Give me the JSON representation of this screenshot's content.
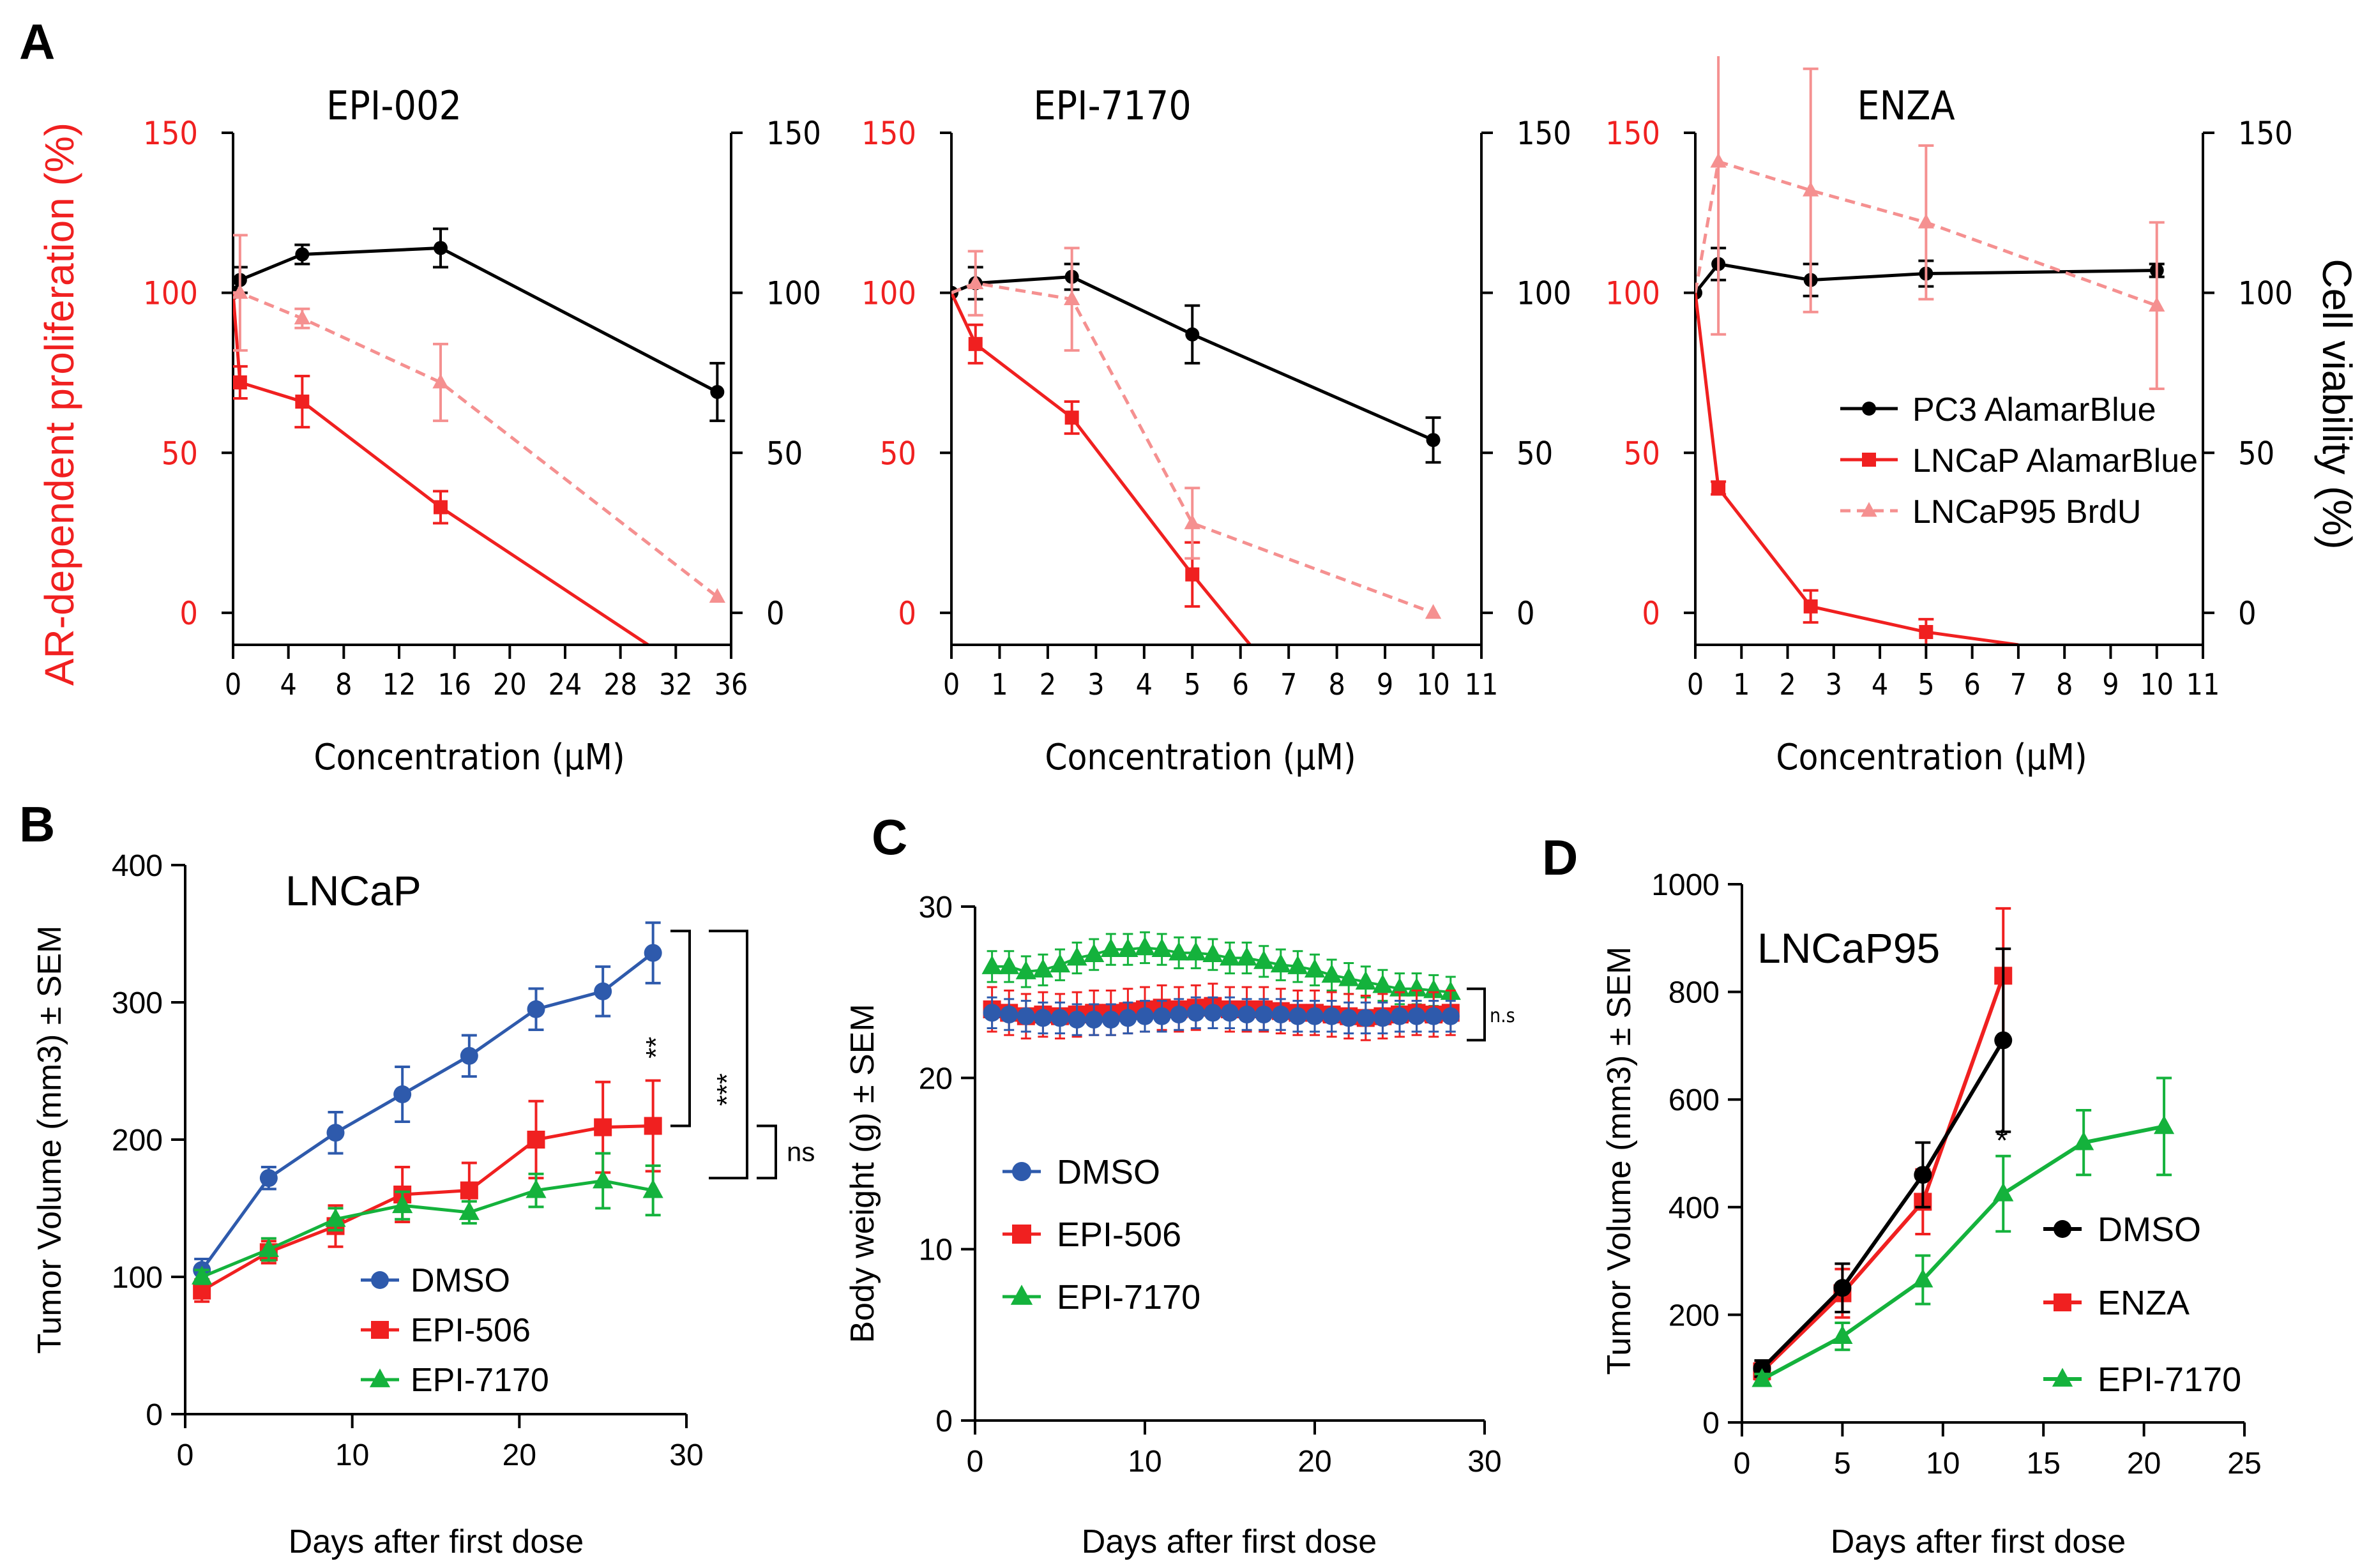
{
  "figure_labels": {
    "A": "A",
    "B": "B",
    "C": "C",
    "D": "D"
  },
  "colors": {
    "black": "#000000",
    "red": "#f02020",
    "pink": "#f59090",
    "blue": "#2e5aac",
    "green": "#14b23c"
  },
  "chart_data": [
    {
      "id": "epi002",
      "type": "line",
      "title": "EPI-002",
      "xlabel": "Concentration (μM)",
      "ylabel_left": "AR-dependent proliferation (%)",
      "ylabel_right": "",
      "xlim": [
        0,
        36
      ],
      "ylim": [
        -10,
        150
      ],
      "xticks": [
        0,
        4,
        8,
        12,
        16,
        20,
        24,
        28,
        32,
        36
      ],
      "yticks_left": [
        0,
        50,
        100,
        150
      ],
      "yticks_right": [
        0,
        50,
        100,
        150
      ],
      "series": [
        {
          "name": "PC3 AlamarBlue",
          "color": "black",
          "dash": false,
          "marker": "circle",
          "x": [
            0,
            0.5,
            5,
            15,
            35
          ],
          "y": [
            100,
            104,
            112,
            114,
            69
          ],
          "err": [
            0,
            4,
            3,
            6,
            9
          ]
        },
        {
          "name": "LNCaP AlamarBlue",
          "color": "red",
          "dash": false,
          "marker": "square",
          "x": [
            0.5,
            5,
            15
          ],
          "y": [
            72,
            66,
            33
          ],
          "err": [
            5,
            8,
            5
          ],
          "line_x": [
            0,
            0.5,
            5,
            15,
            30
          ],
          "line_y": [
            100,
            72,
            66,
            33,
            -10
          ]
        },
        {
          "name": "LNCaP95 BrdU",
          "color": "pink",
          "dash": true,
          "marker": "triangle",
          "x": [
            0.5,
            5,
            15,
            35
          ],
          "y": [
            100,
            92,
            72,
            5
          ],
          "err": [
            18,
            3,
            12,
            0
          ],
          "line_x": [
            0,
            0.5,
            5,
            15,
            35
          ],
          "line_y": [
            100,
            100,
            92,
            72,
            5
          ]
        }
      ]
    },
    {
      "id": "epi7170",
      "type": "line",
      "title": "EPI-7170",
      "xlabel": "Concentration (μM)",
      "xlim": [
        0,
        11
      ],
      "ylim": [
        -10,
        150
      ],
      "xticks": [
        0,
        1,
        2,
        3,
        4,
        5,
        6,
        7,
        8,
        9,
        10,
        11
      ],
      "yticks_left": [
        0,
        50,
        100,
        150
      ],
      "yticks_right": [
        0,
        50,
        100,
        150
      ],
      "series": [
        {
          "name": "PC3 AlamarBlue",
          "color": "black",
          "dash": false,
          "marker": "circle",
          "x": [
            0,
            0.5,
            2.5,
            5,
            10
          ],
          "y": [
            100,
            103,
            105,
            87,
            54
          ],
          "err": [
            0,
            5,
            4,
            9,
            7
          ]
        },
        {
          "name": "LNCaP AlamarBlue",
          "color": "red",
          "dash": false,
          "marker": "square",
          "x": [
            0.5,
            2.5,
            5
          ],
          "y": [
            84,
            61,
            12
          ],
          "err": [
            6,
            5,
            10
          ],
          "line_x": [
            0,
            0.5,
            2.5,
            5,
            6.2
          ],
          "line_y": [
            100,
            84,
            61,
            12,
            -10
          ]
        },
        {
          "name": "LNCaP95 BrdU",
          "color": "pink",
          "dash": true,
          "marker": "triangle",
          "x": [
            0.5,
            2.5,
            5,
            10
          ],
          "y": [
            103,
            98,
            28,
            0
          ],
          "err": [
            10,
            16,
            11,
            0
          ],
          "line_x": [
            0,
            0.5,
            2.5,
            5,
            10
          ],
          "line_y": [
            100,
            103,
            98,
            28,
            0
          ]
        }
      ]
    },
    {
      "id": "enza",
      "type": "line",
      "title": "ENZA",
      "xlabel": "Concentration (μM)",
      "ylabel_right": "Cell viability (%)",
      "xlim": [
        0,
        11
      ],
      "ylim": [
        -10,
        150
      ],
      "xticks": [
        0,
        1,
        2,
        3,
        4,
        5,
        6,
        7,
        8,
        9,
        10,
        11
      ],
      "yticks_left": [
        0,
        50,
        100,
        150
      ],
      "yticks_right": [
        0,
        50,
        100,
        150
      ],
      "legend": [
        {
          "label": "PC3 AlamarBlue",
          "color": "black",
          "marker": "circle",
          "dash": false
        },
        {
          "label": "LNCaP AlamarBlue",
          "color": "red",
          "marker": "square",
          "dash": false
        },
        {
          "label": "LNCaP95 BrdU",
          "color": "pink",
          "marker": "triangle",
          "dash": true
        }
      ],
      "series": [
        {
          "name": "PC3 AlamarBlue",
          "color": "black",
          "dash": false,
          "marker": "circle",
          "x": [
            0,
            0.5,
            2.5,
            5,
            10
          ],
          "y": [
            100,
            109,
            104,
            106,
            107
          ],
          "err": [
            0,
            5,
            5,
            4,
            2
          ]
        },
        {
          "name": "LNCaP AlamarBlue",
          "color": "red",
          "dash": false,
          "marker": "square",
          "x": [
            0.5,
            2.5,
            5
          ],
          "y": [
            39,
            2,
            -6
          ],
          "err": [
            2,
            5,
            4
          ],
          "line_x": [
            0,
            0.5,
            2.5,
            5,
            7
          ],
          "line_y": [
            100,
            39,
            2,
            -6,
            -10
          ]
        },
        {
          "name": "LNCaP95 BrdU",
          "color": "pink",
          "dash": true,
          "marker": "triangle",
          "x": [
            0.5,
            2.5,
            5,
            10
          ],
          "y": [
            141,
            132,
            122,
            96
          ],
          "err": [
            54,
            38,
            24,
            26
          ],
          "line_x": [
            0,
            0.5,
            2.5,
            5,
            10
          ],
          "line_y": [
            100,
            141,
            132,
            122,
            96
          ]
        }
      ]
    },
    {
      "id": "B",
      "type": "line",
      "title": "LNCaP",
      "xlabel": "Days after first dose",
      "ylabel": "Tumor Volume (mm3) ± SEM",
      "xlim": [
        0,
        30
      ],
      "ylim": [
        0,
        400
      ],
      "xticks": [
        0,
        10,
        20,
        30
      ],
      "yticks": [
        0,
        100,
        200,
        300,
        400
      ],
      "legend": [
        {
          "label": "DMSO",
          "color": "blue",
          "marker": "circle"
        },
        {
          "label": "EPI-506",
          "color": "red",
          "marker": "square"
        },
        {
          "label": "EPI-7170",
          "color": "green",
          "marker": "triangle"
        }
      ],
      "significance": {
        "upper": "**",
        "outer": "***",
        "lower": "ns"
      },
      "series": [
        {
          "name": "DMSO",
          "color": "blue",
          "marker": "circle",
          "x": [
            1,
            5,
            9,
            13,
            17,
            21,
            25,
            28
          ],
          "y": [
            105,
            172,
            205,
            233,
            261,
            295,
            308,
            336
          ],
          "err": [
            8,
            8,
            15,
            20,
            15,
            15,
            18,
            22
          ]
        },
        {
          "name": "EPI-506",
          "color": "red",
          "marker": "square",
          "x": [
            1,
            5,
            9,
            13,
            17,
            21,
            25,
            28
          ],
          "y": [
            90,
            118,
            137,
            160,
            163,
            200,
            209,
            210
          ],
          "err": [
            8,
            8,
            15,
            20,
            20,
            28,
            33,
            33
          ]
        },
        {
          "name": "EPI-7170",
          "color": "green",
          "marker": "triangle",
          "x": [
            1,
            5,
            9,
            13,
            17,
            21,
            25,
            28
          ],
          "y": [
            100,
            120,
            142,
            152,
            147,
            163,
            170,
            163
          ],
          "err": [
            5,
            8,
            8,
            10,
            8,
            12,
            20,
            18
          ]
        }
      ]
    },
    {
      "id": "C",
      "type": "line",
      "title": "",
      "xlabel": "Days after first dose",
      "ylabel": "Body weight (g) ± SEM",
      "xlim": [
        0,
        30
      ],
      "ylim": [
        0,
        30
      ],
      "xticks": [
        0,
        10,
        20,
        30
      ],
      "yticks": [
        0,
        10,
        20,
        30
      ],
      "legend": [
        {
          "label": "DMSO",
          "color": "blue",
          "marker": "circle"
        },
        {
          "label": "EPI-506",
          "color": "red",
          "marker": "square"
        },
        {
          "label": "EPI-7170",
          "color": "green",
          "marker": "triangle"
        }
      ],
      "significance": {
        "bracket": "n.s"
      },
      "series": [
        {
          "name": "EPI-7170",
          "color": "green",
          "marker": "triangle",
          "x": [
            1,
            2,
            3,
            4,
            5,
            6,
            7,
            8,
            9,
            10,
            11,
            12,
            13,
            14,
            15,
            16,
            17,
            18,
            19,
            20,
            21,
            22,
            23,
            24,
            25,
            26,
            27,
            28
          ],
          "y": [
            26.5,
            26.5,
            26.2,
            26.3,
            26.6,
            27.0,
            27.2,
            27.5,
            27.5,
            27.6,
            27.5,
            27.3,
            27.3,
            27.2,
            27.0,
            27.0,
            26.8,
            26.6,
            26.5,
            26.3,
            26.0,
            25.8,
            25.6,
            25.4,
            25.2,
            25.2,
            25.1,
            25.0
          ],
          "err": [
            0.9,
            0.9,
            0.9,
            0.9,
            0.9,
            0.9,
            0.9,
            0.9,
            0.9,
            0.9,
            0.9,
            0.9,
            0.9,
            0.9,
            0.9,
            0.9,
            0.9,
            0.9,
            0.9,
            0.9,
            0.9,
            0.9,
            0.9,
            0.9,
            0.9,
            0.9,
            0.9,
            0.9
          ]
        },
        {
          "name": "EPI-506",
          "color": "red",
          "marker": "square",
          "x": [
            1,
            2,
            3,
            4,
            5,
            6,
            7,
            8,
            9,
            10,
            11,
            12,
            13,
            14,
            15,
            16,
            17,
            18,
            19,
            20,
            21,
            22,
            23,
            24,
            25,
            26,
            27,
            28
          ],
          "y": [
            24.0,
            23.8,
            23.6,
            23.7,
            23.6,
            23.7,
            23.8,
            23.8,
            23.9,
            24.0,
            24.1,
            24.0,
            24.1,
            24.2,
            24.0,
            24.0,
            24.0,
            23.9,
            23.8,
            23.8,
            23.7,
            23.6,
            23.5,
            23.6,
            23.7,
            23.8,
            23.7,
            23.8
          ],
          "err": [
            1.3,
            1.3,
            1.3,
            1.3,
            1.3,
            1.3,
            1.3,
            1.3,
            1.3,
            1.3,
            1.3,
            1.3,
            1.3,
            1.3,
            1.3,
            1.3,
            1.3,
            1.3,
            1.3,
            1.3,
            1.3,
            1.3,
            1.3,
            1.3,
            1.3,
            1.3,
            1.3,
            1.3
          ]
        },
        {
          "name": "DMSO",
          "color": "blue",
          "marker": "circle",
          "x": [
            1,
            2,
            3,
            4,
            5,
            6,
            7,
            8,
            9,
            10,
            11,
            12,
            13,
            14,
            15,
            16,
            17,
            18,
            19,
            20,
            21,
            22,
            23,
            24,
            25,
            26,
            27,
            28
          ],
          "y": [
            23.8,
            23.7,
            23.6,
            23.5,
            23.5,
            23.4,
            23.4,
            23.4,
            23.5,
            23.6,
            23.6,
            23.7,
            23.8,
            23.8,
            23.8,
            23.7,
            23.7,
            23.7,
            23.6,
            23.6,
            23.6,
            23.5,
            23.5,
            23.5,
            23.6,
            23.6,
            23.6,
            23.6
          ],
          "err": [
            0.9,
            0.9,
            0.9,
            0.9,
            0.9,
            0.9,
            0.9,
            0.9,
            0.9,
            0.9,
            0.9,
            0.9,
            0.9,
            0.9,
            0.9,
            0.9,
            0.9,
            0.9,
            0.9,
            0.9,
            0.9,
            0.9,
            0.9,
            0.9,
            0.9,
            0.9,
            0.9,
            0.9
          ]
        }
      ]
    },
    {
      "id": "D",
      "type": "line",
      "title": "LNCaP95",
      "xlabel": "Days after first dose",
      "ylabel": "Tumor Volume (mm3) ± SEM",
      "xlim": [
        0,
        25
      ],
      "ylim": [
        0,
        1000
      ],
      "xticks": [
        0,
        5,
        10,
        15,
        20,
        25
      ],
      "yticks": [
        0,
        200,
        400,
        600,
        800,
        1000
      ],
      "legend": [
        {
          "label": "DMSO",
          "color": "black",
          "marker": "circle"
        },
        {
          "label": "ENZA",
          "color": "red",
          "marker": "square"
        },
        {
          "label": "EPI-7170",
          "color": "green",
          "marker": "triangle"
        }
      ],
      "significance": {
        "star": "*"
      },
      "series": [
        {
          "name": "ENZA",
          "color": "red",
          "marker": "square",
          "x": [
            1,
            5,
            9,
            13
          ],
          "y": [
            95,
            240,
            410,
            830
          ],
          "err": [
            15,
            45,
            60,
            125
          ]
        },
        {
          "name": "DMSO",
          "color": "black",
          "marker": "circle",
          "x": [
            1,
            5,
            9,
            13
          ],
          "y": [
            100,
            250,
            460,
            710
          ],
          "err": [
            15,
            45,
            60,
            170
          ]
        },
        {
          "name": "EPI-7170",
          "color": "green",
          "marker": "triangle",
          "x": [
            1,
            5,
            9,
            13,
            17,
            21
          ],
          "y": [
            80,
            160,
            265,
            425,
            520,
            550
          ],
          "err": [
            10,
            25,
            45,
            70,
            60,
            90
          ]
        }
      ]
    }
  ]
}
